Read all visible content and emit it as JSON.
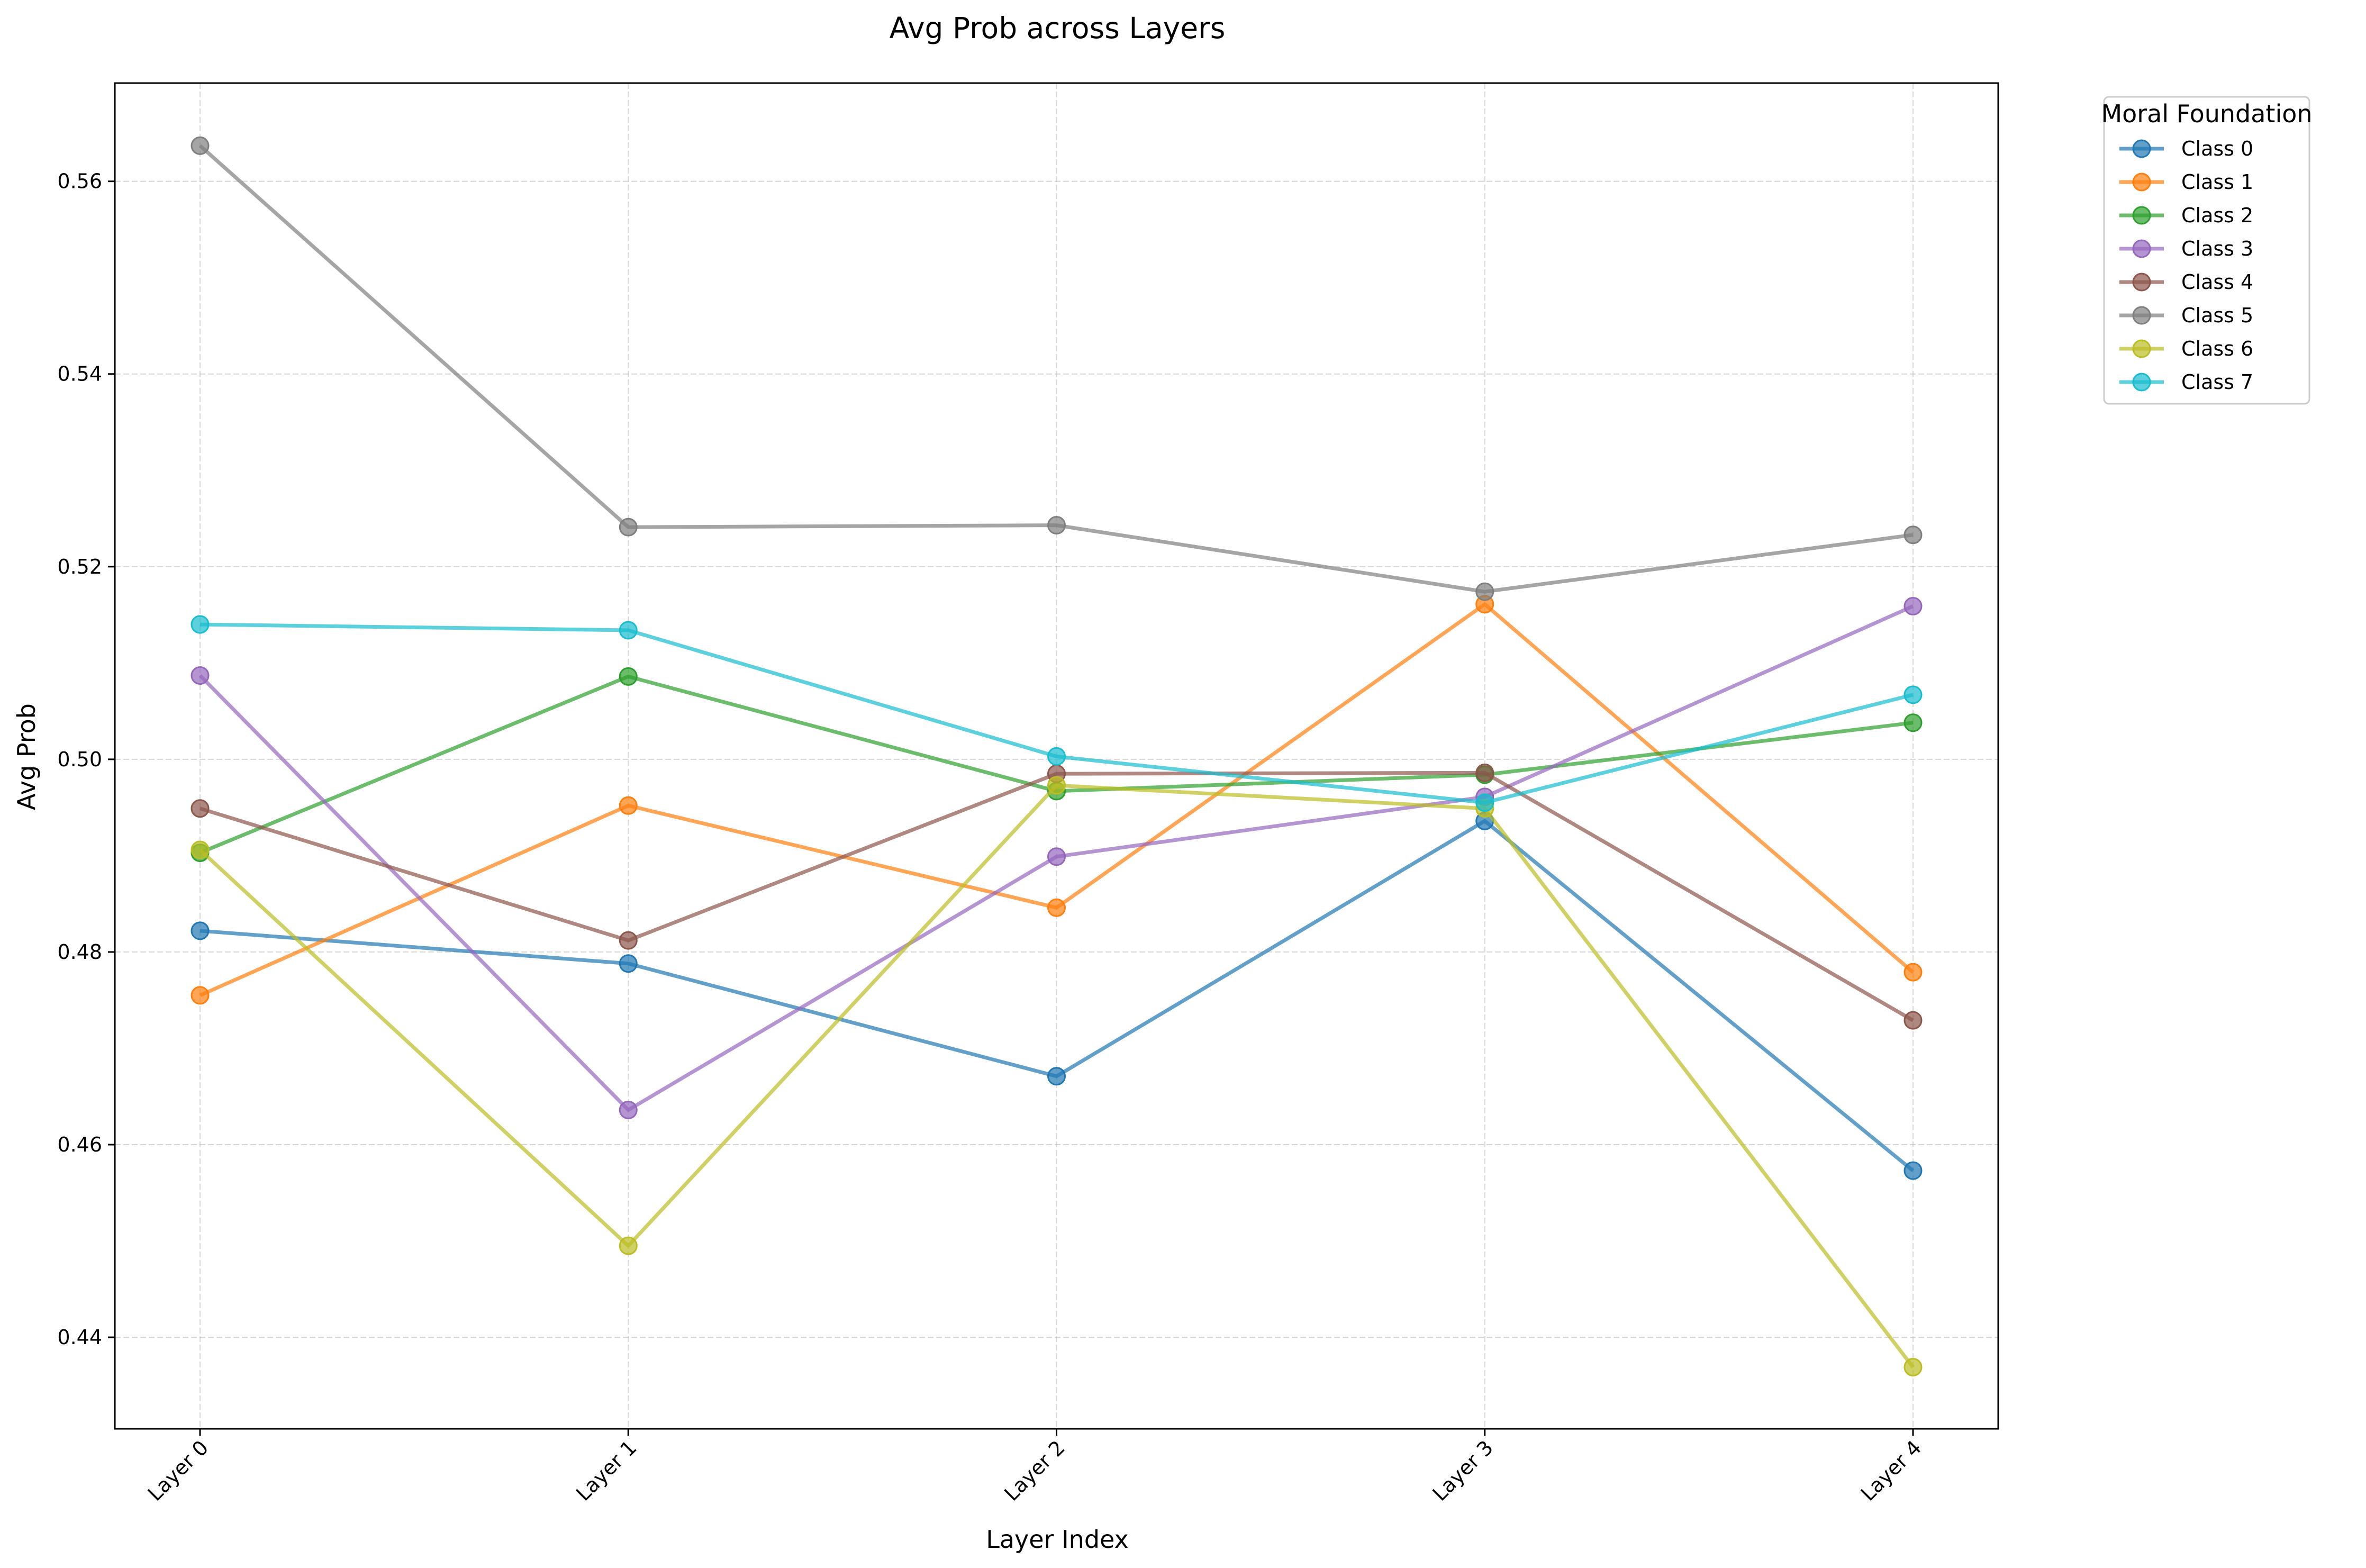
{
  "chart_data": {
    "type": "line",
    "title": "Avg Prob across Layers",
    "xlabel": "Layer Index",
    "ylabel": "Avg Prob",
    "categories": [
      "Layer 0",
      "Layer 1",
      "Layer 2",
      "Layer 3",
      "Layer 4"
    ],
    "ylim": [
      0.4305,
      0.5702
    ],
    "yticks": [
      "0.44",
      "0.46",
      "0.48",
      "0.50",
      "0.52",
      "0.54",
      "0.56"
    ],
    "grid": true,
    "legend": {
      "title": "Moral Foundation",
      "placement": "outside top-right"
    },
    "series": [
      {
        "name": "Class 0",
        "color": "#1f77b4",
        "values": [
          0.4822,
          0.4788,
          0.4671,
          0.4936,
          0.4573
        ]
      },
      {
        "name": "Class 1",
        "color": "#ff7f0e",
        "values": [
          0.4755,
          0.4952,
          0.4846,
          0.5161,
          0.4779
        ]
      },
      {
        "name": "Class 2",
        "color": "#2ca02c",
        "values": [
          0.4903,
          0.5086,
          0.4967,
          0.4984,
          0.5038
        ]
      },
      {
        "name": "Class 3",
        "color": "#9467bd",
        "values": [
          0.5087,
          0.4636,
          0.4899,
          0.4961,
          0.5159
        ]
      },
      {
        "name": "Class 4",
        "color": "#8c564b",
        "values": [
          0.4949,
          0.4812,
          0.4985,
          0.4986,
          0.4729
        ]
      },
      {
        "name": "Class 5",
        "color": "#7f7f7f",
        "values": [
          0.5637,
          0.5241,
          0.5243,
          0.5174,
          0.5233
        ]
      },
      {
        "name": "Class 6",
        "color": "#bcbd22",
        "values": [
          0.4906,
          0.4495,
          0.4973,
          0.4949,
          0.4369
        ]
      },
      {
        "name": "Class 7",
        "color": "#17becf",
        "values": [
          0.514,
          0.5134,
          0.5003,
          0.4955,
          0.5067
        ]
      }
    ]
  }
}
